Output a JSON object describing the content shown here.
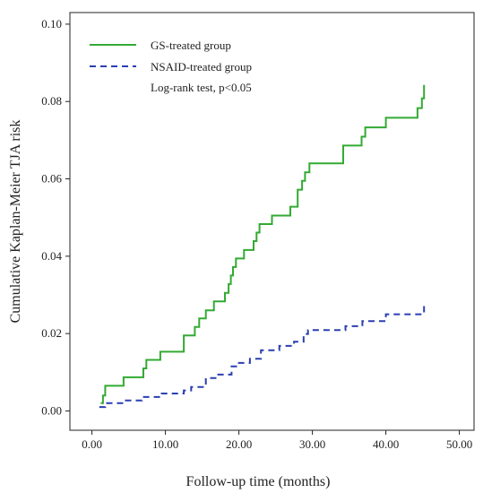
{
  "chart_data": {
    "type": "line",
    "step": true,
    "title": "",
    "xlabel": "Follow-up time (months)",
    "ylabel": "Cumulative Kaplan-Meier TJA risk",
    "xlim": [
      -3,
      52
    ],
    "ylim": [
      -0.005,
      0.103
    ],
    "xticks": [
      0,
      10,
      20,
      30,
      40,
      50
    ],
    "xtick_labels": [
      "0.00",
      "10.00",
      "20.00",
      "30.00",
      "40.00",
      "50.00"
    ],
    "yticks": [
      0,
      0.02,
      0.04,
      0.06,
      0.08,
      0.1
    ],
    "ytick_labels": [
      "0.00",
      "0.02",
      "0.04",
      "0.06",
      "0.08",
      "0.10"
    ],
    "grid": false,
    "legend_position": "top-left",
    "note": "Log-rank test, p<0.05",
    "series": [
      {
        "name": "GS-treated group",
        "color": "#33aa33",
        "style": "solid",
        "x": [
          1.2,
          1.5,
          1.8,
          4.3,
          7.0,
          7.4,
          9.3,
          12.5,
          14.0,
          14.6,
          15.5,
          16.6,
          18.1,
          18.6,
          18.9,
          19.2,
          19.6,
          20.7,
          22.0,
          22.4,
          22.8,
          23.1,
          24.5,
          25.5,
          27.0,
          28.0,
          28.6,
          29.0,
          29.6,
          34.2,
          36.7,
          37.2,
          40.0,
          44.3,
          44.9,
          45.2
        ],
        "y": [
          0.002,
          0.004,
          0.0065,
          0.0087,
          0.011,
          0.0132,
          0.0153,
          0.0195,
          0.0217,
          0.0239,
          0.026,
          0.0283,
          0.0305,
          0.0328,
          0.035,
          0.0372,
          0.0394,
          0.0416,
          0.0439,
          0.0461,
          0.0483,
          0.0483,
          0.0505,
          0.0505,
          0.0528,
          0.0572,
          0.0595,
          0.0617,
          0.064,
          0.0686,
          0.0709,
          0.0733,
          0.0758,
          0.0783,
          0.0808,
          0.0843
        ]
      },
      {
        "name": "NSAID-treated group",
        "color": "#2b3fb0",
        "style": "dashed",
        "x": [
          1.0,
          1.8,
          4.5,
          6.8,
          9.5,
          12.5,
          13.5,
          15.5,
          17.0,
          19.0,
          20.0,
          21.5,
          23.0,
          25.5,
          27.5,
          28.8,
          29.4,
          34.5,
          36.8,
          40.0,
          45.2
        ],
        "y": [
          0.001,
          0.002,
          0.0027,
          0.0036,
          0.0045,
          0.0053,
          0.0062,
          0.0085,
          0.0094,
          0.0115,
          0.0124,
          0.0135,
          0.0157,
          0.0168,
          0.0179,
          0.0199,
          0.0209,
          0.0219,
          0.0232,
          0.025,
          0.0275
        ]
      }
    ]
  }
}
